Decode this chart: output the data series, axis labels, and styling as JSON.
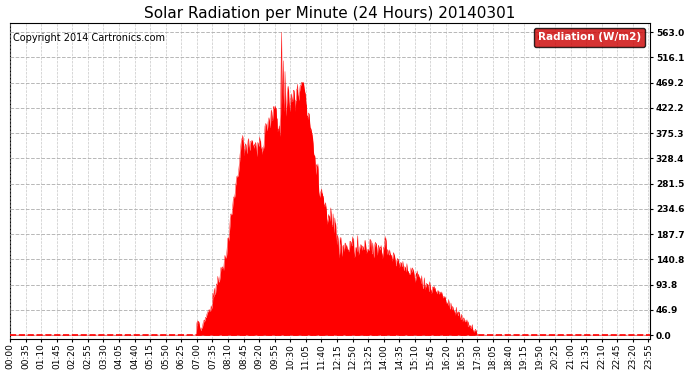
{
  "title": "Solar Radiation per Minute (24 Hours) 20140301",
  "copyright": "Copyright 2014 Cartronics.com",
  "legend_label": "Radiation (W/m2)",
  "y_ticks": [
    0.0,
    46.9,
    93.8,
    140.8,
    187.7,
    234.6,
    281.5,
    328.4,
    375.3,
    422.2,
    469.2,
    516.1,
    563.0
  ],
  "y_max": 580,
  "y_min": -8,
  "fill_color": "#ff0000",
  "line_color": "#ff0000",
  "bg_color": "#ffffff",
  "grid_color": "#b0b0b0",
  "baseline_color": "#ff0000",
  "title_fontsize": 11,
  "copyright_fontsize": 7,
  "tick_fontsize": 6.5,
  "legend_bg": "#cc0000",
  "legend_text_color": "#ffffff",
  "fig_width": 6.9,
  "fig_height": 3.75,
  "dpi": 100
}
